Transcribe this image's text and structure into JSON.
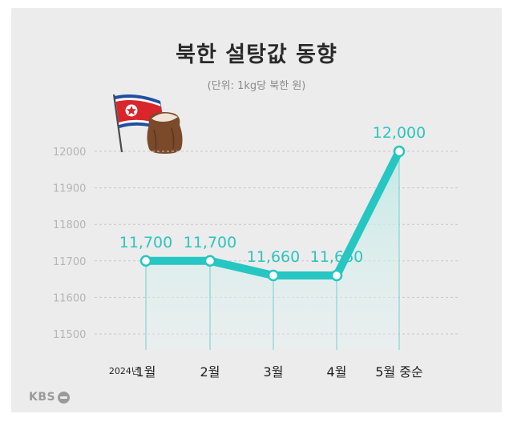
{
  "header": {
    "title": "북한 설탕값 동향",
    "subtitle": "(단위: 1kg당 북한 원)"
  },
  "footer": {
    "brand": "KBS"
  },
  "icons": {
    "flag": "north-korea-flag-icon",
    "sack": "sugar-sack-icon",
    "brand_mark": "kbs-logo-icon"
  },
  "colors": {
    "line": "#26c6c2",
    "area_top": "#bfe9e6",
    "grid": "#c8c8c8",
    "label": "#2ec4c0"
  },
  "chart_data": {
    "type": "area",
    "title": "북한 설탕값 동향",
    "subtitle": "(단위: 1kg당 북한 원)",
    "xlabel": "",
    "ylabel": "",
    "year_label": "2024년",
    "categories": [
      "1월",
      "2월",
      "3월",
      "4월",
      "5월 중순"
    ],
    "series": [
      {
        "values": [
          11700,
          11700,
          11660,
          11660,
          12000
        ]
      }
    ],
    "data_labels": [
      "11,700",
      "11,700",
      "11,660",
      "11,660",
      "12,000"
    ],
    "y_ticks": [
      11500,
      11600,
      11700,
      11800,
      11900,
      12000
    ],
    "ylim": [
      11450,
      12050
    ],
    "grid": true,
    "legend": "none"
  }
}
